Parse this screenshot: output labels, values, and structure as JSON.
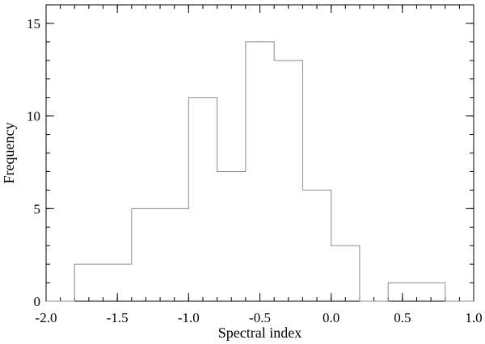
{
  "chart_data": {
    "type": "histogram",
    "title": "",
    "xlabel": "Spectral index",
    "ylabel": "Frequency",
    "xlim": [
      -2.0,
      1.0
    ],
    "ylim": [
      0,
      16
    ],
    "x_ticks": [
      -2.0,
      -1.5,
      -1.0,
      -0.5,
      0.0,
      0.5,
      1.0
    ],
    "x_tick_labels": [
      "-2.0",
      "-1.5",
      "-1.0",
      "-0.5",
      "0.0",
      "0.5",
      "1.0"
    ],
    "x_minor_step": 0.1,
    "y_ticks": [
      0,
      5,
      10,
      15
    ],
    "y_tick_labels": [
      "0",
      "5",
      "10",
      "15"
    ],
    "y_minor_step": 1,
    "bin_edges": [
      -2.0,
      -1.8,
      -1.6,
      -1.4,
      -1.2,
      -1.0,
      -0.8,
      -0.6,
      -0.4,
      -0.2,
      0.0,
      0.2,
      0.4,
      0.6,
      0.8,
      1.0
    ],
    "counts": [
      0,
      2,
      2,
      5,
      5,
      11,
      7,
      14,
      13,
      6,
      3,
      0,
      1,
      1,
      0
    ],
    "line_color": "#8c8c8c",
    "axis_color": "#000000",
    "grid": false
  }
}
